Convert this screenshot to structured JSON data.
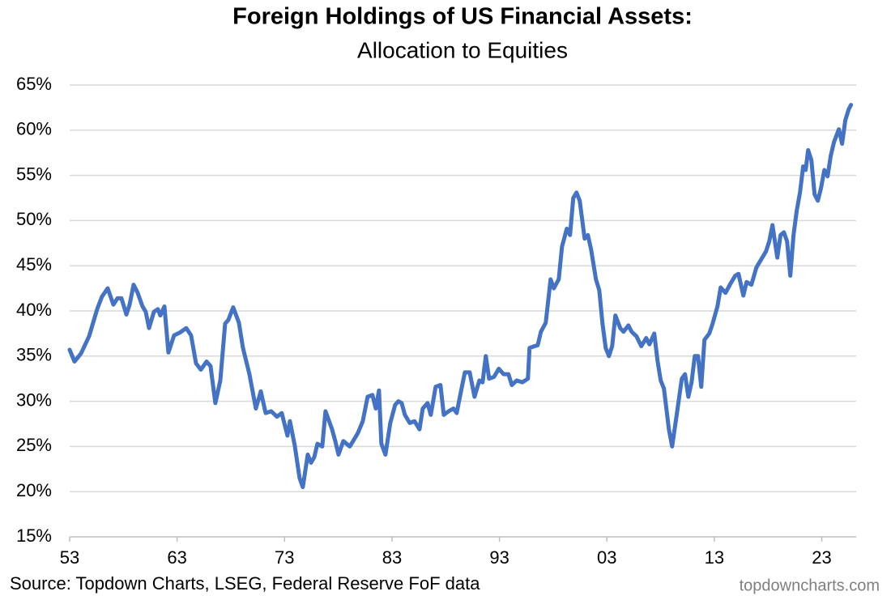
{
  "chart_data": {
    "type": "line",
    "title": "Foreign Holdings of US Financial Assets:",
    "subtitle": "Allocation to Equities",
    "source": "Source: Topdown Charts, LSEG, Federal Reserve FoF data",
    "watermark": "topdowncharts.com",
    "color": "#4472c4",
    "grid": true,
    "xlim": [
      1953,
      2026.2
    ],
    "xticks": [
      {
        "value": 1953,
        "label": "53"
      },
      {
        "value": 1963,
        "label": "63"
      },
      {
        "value": 1973,
        "label": "73"
      },
      {
        "value": 1983,
        "label": "83"
      },
      {
        "value": 1993,
        "label": "93"
      },
      {
        "value": 2003,
        "label": "03"
      },
      {
        "value": 2013,
        "label": "13"
      },
      {
        "value": 2023,
        "label": "23"
      }
    ],
    "ylim": [
      15,
      65
    ],
    "yticks": [
      {
        "value": 15,
        "label": "15%"
      },
      {
        "value": 20,
        "label": "20%"
      },
      {
        "value": 25,
        "label": "25%"
      },
      {
        "value": 30,
        "label": "30%"
      },
      {
        "value": 35,
        "label": "35%"
      },
      {
        "value": 40,
        "label": "40%"
      },
      {
        "value": 45,
        "label": "45%"
      },
      {
        "value": 50,
        "label": "50%"
      },
      {
        "value": 55,
        "label": "55%"
      },
      {
        "value": 60,
        "label": "60%"
      },
      {
        "value": 65,
        "label": "65%"
      }
    ],
    "x": [
      1953.0,
      1953.45,
      1954.06,
      1954.81,
      1955.56,
      1956.01,
      1956.54,
      1957.07,
      1957.45,
      1957.82,
      1958.28,
      1958.58,
      1958.95,
      1959.33,
      1959.78,
      1960.08,
      1960.39,
      1960.84,
      1961.21,
      1961.44,
      1961.82,
      1962.19,
      1962.72,
      1963.25,
      1963.85,
      1964.3,
      1964.76,
      1965.21,
      1965.74,
      1966.11,
      1966.56,
      1967.02,
      1967.47,
      1967.77,
      1968.22,
      1968.75,
      1969.13,
      1969.73,
      1970.33,
      1970.79,
      1971.24,
      1971.76,
      1972.29,
      1972.74,
      1973.27,
      1973.5,
      1973.95,
      1974.4,
      1974.7,
      1975.16,
      1975.46,
      1975.76,
      1976.06,
      1976.51,
      1976.81,
      1977.42,
      1977.72,
      1978.02,
      1978.47,
      1979.07,
      1979.38,
      1979.83,
      1980.28,
      1980.73,
      1981.18,
      1981.49,
      1981.79,
      1982.01,
      1982.39,
      1982.84,
      1983.29,
      1983.6,
      1983.9,
      1984.2,
      1984.65,
      1985.1,
      1985.56,
      1985.86,
      1986.31,
      1986.61,
      1987.06,
      1987.51,
      1987.82,
      1988.27,
      1988.72,
      1989.02,
      1989.47,
      1989.78,
      1990.23,
      1990.68,
      1991.13,
      1991.43,
      1991.73,
      1992.04,
      1992.49,
      1992.94,
      1993.39,
      1993.84,
      1994.15,
      1994.6,
      1995.13,
      1995.65,
      1995.8,
      1996.26,
      1996.56,
      1996.86,
      1997.31,
      1997.76,
      1998.06,
      1998.52,
      1998.82,
      1999.27,
      1999.57,
      1999.87,
      2000.17,
      2000.47,
      2000.93,
      2001.23,
      2001.53,
      2001.98,
      2002.29,
      2002.59,
      2002.89,
      2003.19,
      2003.49,
      2003.79,
      2004.24,
      2004.55,
      2005.0,
      2005.3,
      2005.75,
      2006.2,
      2006.66,
      2006.96,
      2007.41,
      2007.71,
      2008.01,
      2008.31,
      2008.77,
      2009.07,
      2009.52,
      2009.97,
      2010.27,
      2010.58,
      2010.88,
      2011.18,
      2011.48,
      2011.78,
      2012.08,
      2012.53,
      2012.84,
      2013.29,
      2013.59,
      2014.04,
      2014.49,
      2014.95,
      2015.25,
      2015.7,
      2016.0,
      2016.45,
      2016.91,
      2017.36,
      2017.81,
      2018.11,
      2018.41,
      2018.86,
      2019.16,
      2019.47,
      2019.77,
      2020.07,
      2020.37,
      2020.67,
      2020.97,
      2021.27,
      2021.5,
      2021.73,
      2022.03,
      2022.33,
      2022.63,
      2022.93,
      2023.24,
      2023.54,
      2023.84,
      2024.14,
      2024.59,
      2024.89,
      2025.19,
      2025.5,
      2025.72
    ],
    "values": [
      35.7,
      34.4,
      35.3,
      37.2,
      40.2,
      41.6,
      42.5,
      40.7,
      41.4,
      41.4,
      39.6,
      40.7,
      42.9,
      42.0,
      40.5,
      39.9,
      38.1,
      39.9,
      40.2,
      39.5,
      40.5,
      35.4,
      37.3,
      37.6,
      38.1,
      37.3,
      34.2,
      33.5,
      34.4,
      33.9,
      29.8,
      32.3,
      38.6,
      39.0,
      40.4,
      38.7,
      35.9,
      33.0,
      29.2,
      31.1,
      28.7,
      28.9,
      28.3,
      28.7,
      26.2,
      27.8,
      25.1,
      21.5,
      20.5,
      24.1,
      23.2,
      23.8,
      25.3,
      25.0,
      28.9,
      26.9,
      25.6,
      24.1,
      25.6,
      25.0,
      25.6,
      26.5,
      27.8,
      30.5,
      30.7,
      29.2,
      31.2,
      25.3,
      24.1,
      27.6,
      29.6,
      30.0,
      29.8,
      28.5,
      27.6,
      27.8,
      26.9,
      29.2,
      29.8,
      28.5,
      31.6,
      31.8,
      28.5,
      28.9,
      29.2,
      28.7,
      31.4,
      33.2,
      33.2,
      30.5,
      32.3,
      32.1,
      35.0,
      32.5,
      32.7,
      33.6,
      33.0,
      33.0,
      31.8,
      32.3,
      32.1,
      32.5,
      35.9,
      36.1,
      36.2,
      37.7,
      38.7,
      43.5,
      42.5,
      43.5,
      47.1,
      49.1,
      48.4,
      52.5,
      53.1,
      52.2,
      48.0,
      48.4,
      46.8,
      43.5,
      42.3,
      38.6,
      35.9,
      35.0,
      36.1,
      39.5,
      38.1,
      37.7,
      38.4,
      37.7,
      37.2,
      36.1,
      37.0,
      36.3,
      37.5,
      34.5,
      32.3,
      31.4,
      26.9,
      25.0,
      28.7,
      32.5,
      33.0,
      30.5,
      32.1,
      35.0,
      35.0,
      31.6,
      36.8,
      37.5,
      38.6,
      40.5,
      42.6,
      42.0,
      43.0,
      43.9,
      44.1,
      41.7,
      43.2,
      42.9,
      44.8,
      45.7,
      46.6,
      47.7,
      49.5,
      45.9,
      48.4,
      48.7,
      47.7,
      43.9,
      48.4,
      51.1,
      53.1,
      56.0,
      55.6,
      57.8,
      56.7,
      52.9,
      52.2,
      53.6,
      55.6,
      54.9,
      57.2,
      58.7,
      60.1,
      58.5,
      61.1,
      62.3,
      62.8
    ]
  }
}
